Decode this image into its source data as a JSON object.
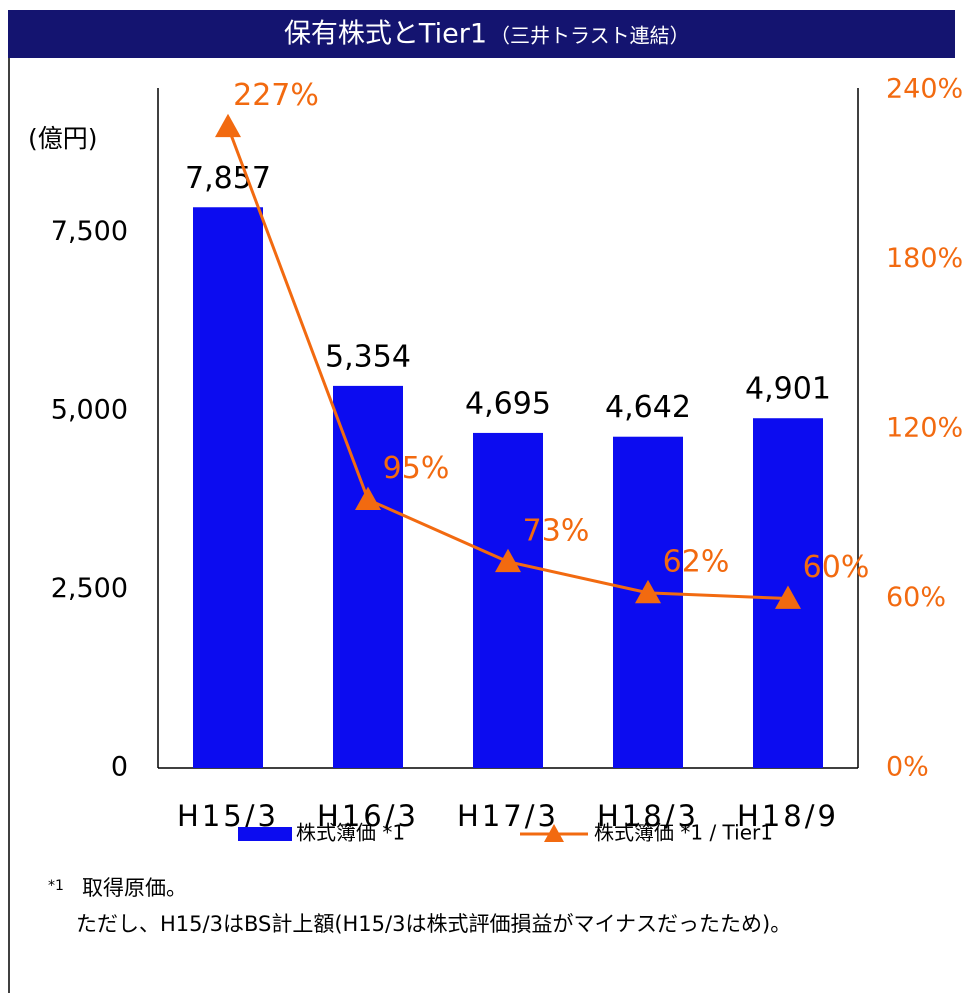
{
  "chart_data": {
    "type": "bar",
    "title": "保有株式とTier1",
    "subtitle": "（三井トラスト連結）",
    "y_axis_label": "(億円)",
    "categories": [
      "H15/3",
      "H16/3",
      "H17/3",
      "H18/3",
      "H18/9"
    ],
    "series": [
      {
        "name": "株式簿価 *1",
        "type": "bar",
        "color": "#0c0cf0",
        "values": [
          7857,
          5354,
          4695,
          4642,
          4901
        ],
        "value_labels": [
          "7,857",
          "5,354",
          "4,695",
          "4,642",
          "4,901"
        ]
      },
      {
        "name": "株式簿価 *1 / Tier1",
        "type": "line",
        "axis": "y2",
        "color": "#f26a10",
        "values": [
          227,
          95,
          73,
          62,
          60
        ],
        "value_labels": [
          "227%",
          "95%",
          "73%",
          "62%",
          "60%"
        ]
      }
    ],
    "ylim": [
      0,
      9500
    ],
    "yticks": [
      0,
      {
        "value": 2500,
        "label": "2,500"
      },
      {
        "value": 5000,
        "label": "5,000"
      },
      {
        "value": 7500,
        "label": "7,500"
      }
    ],
    "y2lim": [
      0,
      240
    ],
    "y2ticks": [
      {
        "value": 0,
        "label": "0%"
      },
      {
        "value": 60,
        "label": "60%"
      },
      {
        "value": 120,
        "label": "120%"
      },
      {
        "value": 180,
        "label": "180%"
      },
      {
        "value": 240,
        "label": "240%"
      }
    ],
    "grid": false,
    "legend": "bottom",
    "footnote_marker": "*1",
    "footnotes": [
      "取得原価。",
      "ただし、H15/3はBS計上額(H15/3は株式評価損益がマイナスだったため)。"
    ]
  }
}
